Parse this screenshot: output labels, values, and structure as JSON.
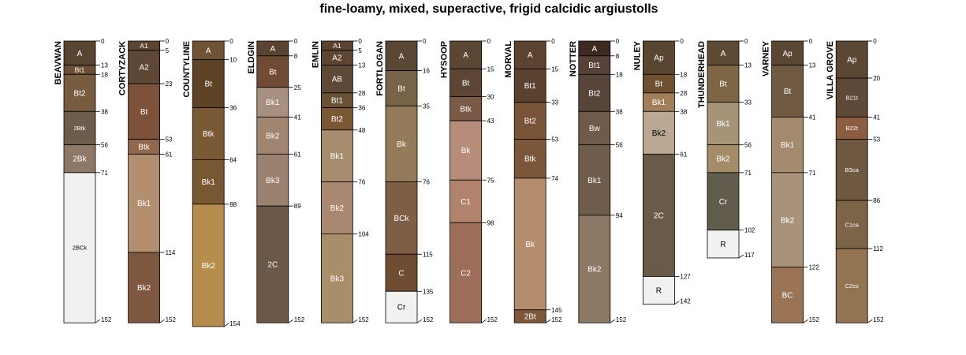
{
  "chart_data": {
    "type": "soil-profile-sketch",
    "title": "fine-loamy, mixed, superactive, frigid calcidic argiustolls",
    "depth_unit": "cm",
    "profiles": [
      {
        "name": "BEAVWAN",
        "horizons": [
          {
            "name": "A",
            "top": 0,
            "bottom": 13,
            "color": "#5a4532"
          },
          {
            "name": "Bt1",
            "top": 13,
            "bottom": 18,
            "color": "#6a4f36"
          },
          {
            "name": "Bt2",
            "top": 18,
            "bottom": 38,
            "color": "#775c40"
          },
          {
            "name": "2Btk",
            "top": 38,
            "bottom": 56,
            "color": "#6c5c4c"
          },
          {
            "name": "2Bk",
            "top": 56,
            "bottom": 71,
            "color": "#8f7868"
          },
          {
            "name": "2BCk",
            "top": 71,
            "bottom": 152,
            "color": "#f1f1f1"
          }
        ]
      },
      {
        "name": "CORTYZACK",
        "horizons": [
          {
            "name": "A1",
            "top": 0,
            "bottom": 5,
            "color": "#5c4532"
          },
          {
            "name": "A2",
            "top": 5,
            "bottom": 23,
            "color": "#5e4734"
          },
          {
            "name": "Bt",
            "top": 23,
            "bottom": 53,
            "color": "#7d513a"
          },
          {
            "name": "Btk",
            "top": 53,
            "bottom": 61,
            "color": "#93674e"
          },
          {
            "name": "Bk1",
            "top": 61,
            "bottom": 114,
            "color": "#b38f72"
          },
          {
            "name": "Bk2",
            "top": 114,
            "bottom": 152,
            "color": "#7f5640"
          }
        ]
      },
      {
        "name": "COUNTYLINE",
        "horizons": [
          {
            "name": "A",
            "top": 0,
            "bottom": 10,
            "color": "#6e5334"
          },
          {
            "name": "Bt",
            "top": 10,
            "bottom": 36,
            "color": "#5e4226"
          },
          {
            "name": "Btk",
            "top": 36,
            "bottom": 64,
            "color": "#7a5a35"
          },
          {
            "name": "Bk1",
            "top": 64,
            "bottom": 88,
            "color": "#775832"
          },
          {
            "name": "Bk2",
            "top": 88,
            "bottom": 154,
            "color": "#b78d4e"
          }
        ]
      },
      {
        "name": "ELDGIN",
        "horizons": [
          {
            "name": "A",
            "top": 0,
            "bottom": 8,
            "color": "#5a4330"
          },
          {
            "name": "Bt",
            "top": 8,
            "bottom": 25,
            "color": "#6f4a34"
          },
          {
            "name": "Bk1",
            "top": 25,
            "bottom": 41,
            "color": "#a89080"
          },
          {
            "name": "Bk2",
            "top": 41,
            "bottom": 61,
            "color": "#a08570"
          },
          {
            "name": "Bk3",
            "top": 61,
            "bottom": 89,
            "color": "#9b8270"
          },
          {
            "name": "2C",
            "top": 89,
            "bottom": 152,
            "color": "#6b5848"
          }
        ]
      },
      {
        "name": "EMLIN",
        "horizons": [
          {
            "name": "A1",
            "top": 0,
            "bottom": 5,
            "color": "#5a4330"
          },
          {
            "name": "A2",
            "top": 5,
            "bottom": 13,
            "color": "#5e4634"
          },
          {
            "name": "AB",
            "top": 13,
            "bottom": 28,
            "color": "#5e4836"
          },
          {
            "name": "Bt1",
            "top": 28,
            "bottom": 36,
            "color": "#6a5035"
          },
          {
            "name": "Bt2",
            "top": 36,
            "bottom": 48,
            "color": "#7a5834"
          },
          {
            "name": "Bk1",
            "top": 48,
            "bottom": 76,
            "color": "#a68d70"
          },
          {
            "name": "Bk2",
            "top": 76,
            "bottom": 104,
            "color": "#a98770"
          },
          {
            "name": "Bk3",
            "top": 104,
            "bottom": 152,
            "color": "#a88f6a"
          }
        ]
      },
      {
        "name": "FORTLOGAN",
        "horizons": [
          {
            "name": "A",
            "top": 0,
            "bottom": 16,
            "color": "#5a4634"
          },
          {
            "name": "Bt",
            "top": 16,
            "bottom": 35,
            "color": "#776348"
          },
          {
            "name": "Bk",
            "top": 35,
            "bottom": 76,
            "color": "#937a58"
          },
          {
            "name": "BCk",
            "top": 76,
            "bottom": 115,
            "color": "#7e5e44"
          },
          {
            "name": "C",
            "top": 115,
            "bottom": 135,
            "color": "#6e4d32"
          },
          {
            "name": "Cr",
            "top": 135,
            "bottom": 152,
            "color": "#f1f1f1"
          }
        ]
      },
      {
        "name": "HYSOOP",
        "horizons": [
          {
            "name": "A",
            "top": 0,
            "bottom": 15,
            "color": "#5a4632"
          },
          {
            "name": "Bt",
            "top": 15,
            "bottom": 30,
            "color": "#5e4636"
          },
          {
            "name": "Btk",
            "top": 30,
            "bottom": 43,
            "color": "#7a5a46"
          },
          {
            "name": "Bk",
            "top": 43,
            "bottom": 75,
            "color": "#b88c7a"
          },
          {
            "name": "C1",
            "top": 75,
            "bottom": 98,
            "color": "#b1836d"
          },
          {
            "name": "C2",
            "top": 98,
            "bottom": 152,
            "color": "#9d6e5a"
          }
        ]
      },
      {
        "name": "MORVAL",
        "horizons": [
          {
            "name": "A",
            "top": 0,
            "bottom": 15,
            "color": "#5c4330"
          },
          {
            "name": "Bt1",
            "top": 15,
            "bottom": 33,
            "color": "#5b4130"
          },
          {
            "name": "Bt2",
            "top": 33,
            "bottom": 53,
            "color": "#7a5438"
          },
          {
            "name": "Btk",
            "top": 53,
            "bottom": 74,
            "color": "#7b563a"
          },
          {
            "name": "Bk",
            "top": 74,
            "bottom": 145,
            "color": "#b48d6e"
          },
          {
            "name": "2Bt",
            "top": 145,
            "bottom": 152,
            "color": "#7e5638"
          }
        ]
      },
      {
        "name": "NOTTER",
        "horizons": [
          {
            "name": "A",
            "top": 0,
            "bottom": 8,
            "color": "#3c2a22"
          },
          {
            "name": "Bt1",
            "top": 8,
            "bottom": 18,
            "color": "#57423a"
          },
          {
            "name": "Bt2",
            "top": 18,
            "bottom": 38,
            "color": "#57453a"
          },
          {
            "name": "Bw",
            "top": 38,
            "bottom": 56,
            "color": "#6e5b4a"
          },
          {
            "name": "Bk1",
            "top": 56,
            "bottom": 94,
            "color": "#6e5c4c"
          },
          {
            "name": "Bk2",
            "top": 94,
            "bottom": 152,
            "color": "#8b7966"
          }
        ]
      },
      {
        "name": "NULEY",
        "horizons": [
          {
            "name": "Ap",
            "top": 0,
            "bottom": 18,
            "color": "#5a4530"
          },
          {
            "name": "Bt",
            "top": 18,
            "bottom": 28,
            "color": "#6e4f30"
          },
          {
            "name": "Bk1",
            "top": 28,
            "bottom": 38,
            "color": "#a07e5a"
          },
          {
            "name": "Bk2",
            "top": 38,
            "bottom": 61,
            "color": "#bba894"
          },
          {
            "name": "2C",
            "top": 61,
            "bottom": 127,
            "color": "#6a5a48"
          },
          {
            "name": "R",
            "top": 127,
            "bottom": 142,
            "color": "#f1f1f1"
          }
        ]
      },
      {
        "name": "THUNDERHEAD",
        "horizons": [
          {
            "name": "A",
            "top": 0,
            "bottom": 13,
            "color": "#5e4a34"
          },
          {
            "name": "Bt",
            "top": 13,
            "bottom": 33,
            "color": "#7c6644"
          },
          {
            "name": "Bk1",
            "top": 33,
            "bottom": 56,
            "color": "#a69478"
          },
          {
            "name": "Bk2",
            "top": 56,
            "bottom": 71,
            "color": "#a48c68"
          },
          {
            "name": "Cr",
            "top": 71,
            "bottom": 102,
            "color": "#625c4e"
          },
          {
            "name": "R",
            "top": 102,
            "bottom": 117,
            "color": "#f1f1f1"
          }
        ]
      },
      {
        "name": "VARNEY",
        "horizons": [
          {
            "name": "Ap",
            "top": 0,
            "bottom": 13,
            "color": "#5a4632"
          },
          {
            "name": "Bt",
            "top": 13,
            "bottom": 41,
            "color": "#715a42"
          },
          {
            "name": "Bk1",
            "top": 41,
            "bottom": 71,
            "color": "#a48a6e"
          },
          {
            "name": "Bk2",
            "top": 71,
            "bottom": 122,
            "color": "#a8937a"
          },
          {
            "name": "BC",
            "top": 122,
            "bottom": 152,
            "color": "#9b7456"
          }
        ]
      },
      {
        "name": "VILLA GROVE",
        "horizons": [
          {
            "name": "Ap",
            "top": 0,
            "bottom": 20,
            "color": "#5c4734"
          },
          {
            "name": "B21t",
            "top": 20,
            "bottom": 41,
            "color": "#5e4838"
          },
          {
            "name": "B22t",
            "top": 41,
            "bottom": 53,
            "color": "#8c5d40"
          },
          {
            "name": "B3ca",
            "top": 53,
            "bottom": 86,
            "color": "#6f5842"
          },
          {
            "name": "C1ca",
            "top": 86,
            "bottom": 112,
            "color": "#7b6448"
          },
          {
            "name": "C2cs",
            "top": 112,
            "bottom": 152,
            "color": "#927450"
          }
        ]
      }
    ]
  }
}
